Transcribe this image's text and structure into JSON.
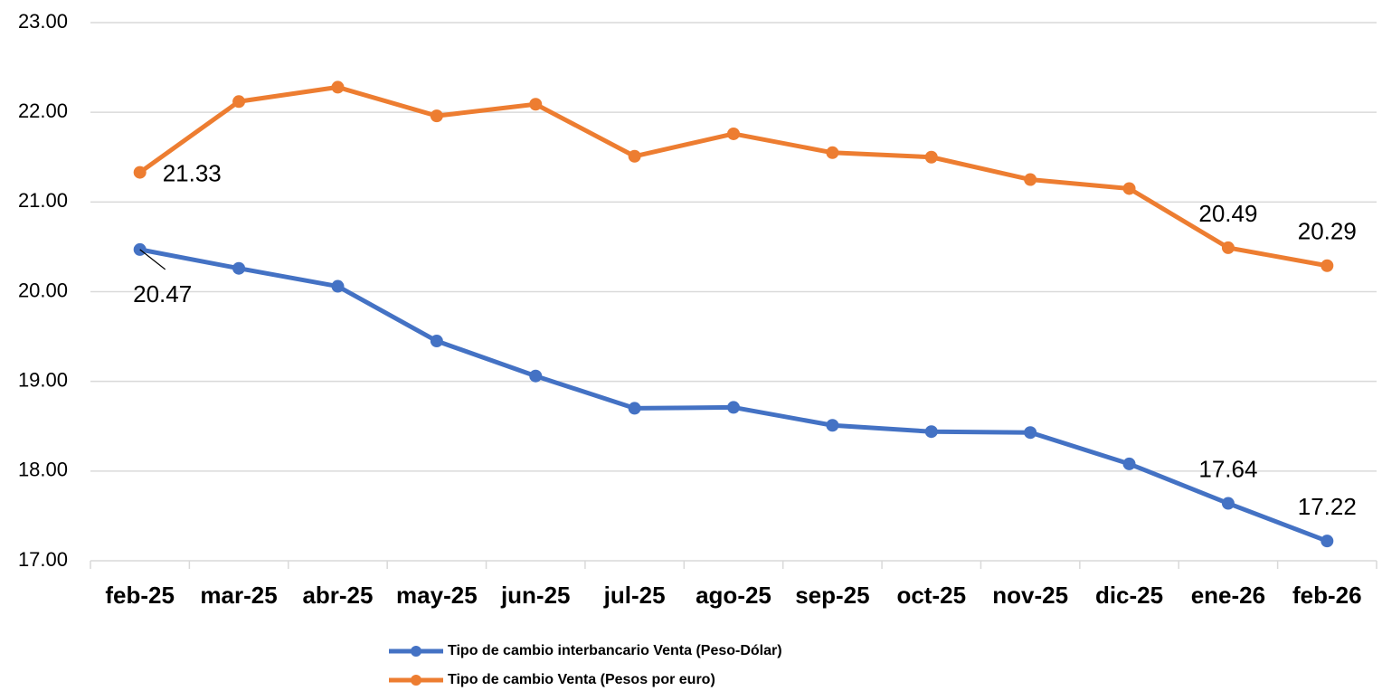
{
  "chart_data": {
    "type": "line",
    "categories": [
      "feb-25",
      "mar-25",
      "abr-25",
      "may-25",
      "jun-25",
      "jul-25",
      "ago-25",
      "sep-25",
      "oct-25",
      "nov-25",
      "dic-25",
      "ene-26",
      "feb-26"
    ],
    "series": [
      {
        "name": "Tipo de cambio interbancario Venta (Peso-Dólar)",
        "color": "#4472c4",
        "values": [
          20.47,
          20.26,
          20.06,
          19.45,
          19.06,
          18.7,
          18.71,
          18.51,
          18.44,
          18.43,
          18.08,
          17.64,
          17.22
        ],
        "data_labels": [
          0,
          11,
          12
        ]
      },
      {
        "name": "Tipo de cambio Venta (Pesos por euro)",
        "color": "#ed7d31",
        "values": [
          21.33,
          22.12,
          22.28,
          21.96,
          22.09,
          21.51,
          21.76,
          21.55,
          21.5,
          21.25,
          21.15,
          20.49,
          20.29
        ],
        "data_labels": [
          0,
          11,
          12
        ]
      }
    ],
    "ylim": [
      17,
      23
    ],
    "yticks": [
      {
        "value": 17,
        "label": "17.00"
      },
      {
        "value": 18,
        "label": "18.00"
      },
      {
        "value": 19,
        "label": "19.00"
      },
      {
        "value": 20,
        "label": "20.00"
      },
      {
        "value": 21,
        "label": "21.00"
      },
      {
        "value": 22,
        "label": "22.00"
      },
      {
        "value": 23,
        "label": "23.00"
      }
    ],
    "grid": true,
    "legend": "bottom"
  }
}
